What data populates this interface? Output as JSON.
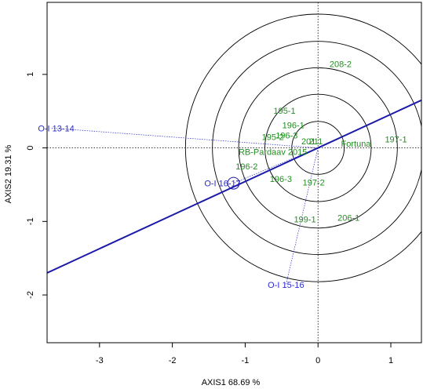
{
  "chart_data": {
    "type": "scatter",
    "xlabel": "AXIS1 68.69 %",
    "ylabel": "AXIS2 19.31 %",
    "xlim": [
      -3.72,
      1.42
    ],
    "ylim": [
      -2.65,
      1.98
    ],
    "x_ticks": [
      "-3",
      "-2",
      "-1",
      "0",
      "1"
    ],
    "y_ticks": [
      "-2",
      "-1",
      "0",
      "1"
    ],
    "x_tick_values": [
      -3,
      -2,
      -1,
      0,
      1
    ],
    "y_tick_values": [
      -2,
      -1,
      0,
      1
    ],
    "origin": [
      0,
      0
    ],
    "axis_line_slope": 0.457,
    "circle_radii": [
      0.36,
      0.73,
      1.09,
      1.45,
      1.82
    ],
    "genotypes": [
      {
        "label": "208-2",
        "x": 0.31,
        "y": 1.14
      },
      {
        "label": "195-1",
        "x": -0.46,
        "y": 0.51
      },
      {
        "label": "196-1",
        "x": -0.34,
        "y": 0.31
      },
      {
        "label": "196-3",
        "x": -0.43,
        "y": 0.17
      },
      {
        "label": "195-2",
        "x": -0.62,
        "y": 0.15
      },
      {
        "label": "201",
        "x": -0.13,
        "y": 0.09
      },
      {
        "label": "211",
        "x": -0.03,
        "y": 0.09
      },
      {
        "label": "RB-Pardaav 2015",
        "x": -0.62,
        "y": -0.05
      },
      {
        "label": "Fortuna",
        "x": 0.52,
        "y": 0.06
      },
      {
        "label": "197-1",
        "x": 1.07,
        "y": 0.12
      },
      {
        "label": "196-2",
        "x": -0.98,
        "y": -0.25
      },
      {
        "label": "196-3",
        "x": -0.51,
        "y": -0.42
      },
      {
        "label": "197-2",
        "x": -0.06,
        "y": -0.47
      },
      {
        "label": "199-1",
        "x": -0.18,
        "y": -0.97
      },
      {
        "label": "206-1",
        "x": 0.42,
        "y": -0.95
      }
    ],
    "environments": [
      {
        "label": "O-I 13-14",
        "x": -3.66,
        "y": 0.27,
        "label_dx": 6
      },
      {
        "label": "O-I 16-17",
        "x": -1.16,
        "y": -0.48,
        "label_dx": -14
      },
      {
        "label": "O-I 15-16",
        "x": -0.44,
        "y": -1.86,
        "label_dx": 0
      }
    ],
    "ideal_marker": {
      "x": -1.16,
      "y": -0.48,
      "radius": 0.08
    },
    "colors": {
      "axis_line": "#1a1aa8",
      "genotype": "#1f8f1f",
      "environment": "#2a2ad0",
      "vector": "#4040d0",
      "circle": "#000000"
    }
  }
}
